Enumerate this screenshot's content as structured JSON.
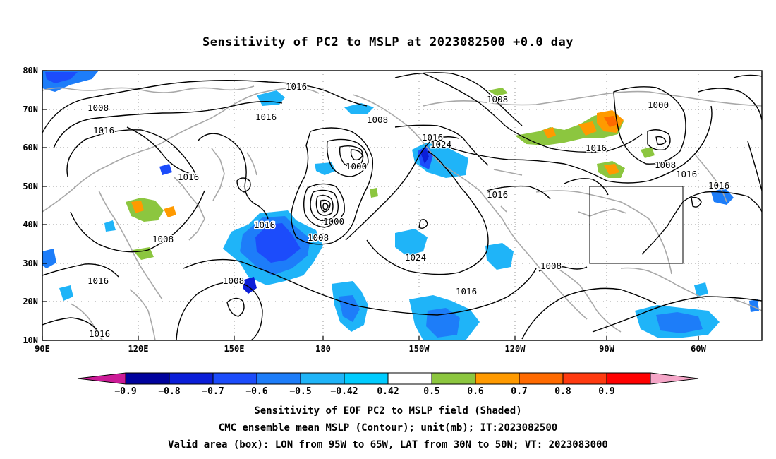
{
  "title": "Sensitivity of PC2 to MSLP at 2023082500 +0.0 day",
  "lat_labels": [
    "80N",
    "70N",
    "60N",
    "50N",
    "40N",
    "30N",
    "20N",
    "10N"
  ],
  "lon_labels": [
    "90E",
    "120E",
    "150E",
    "180",
    "150W",
    "120W",
    "90W",
    "60W"
  ],
  "contour_labels": [
    "1016",
    "1008",
    "1016",
    "1016",
    "1008",
    "1016",
    "1016",
    "1008",
    "1000",
    "1000",
    "1008",
    "1016",
    "1008",
    "1008",
    "1016",
    "1024",
    "1024",
    "1016",
    "1016",
    "1000",
    "1008",
    "1016",
    "1016",
    "1008",
    "1016",
    "1016"
  ],
  "colorbar": {
    "tick_labels": [
      "-0.9",
      "-0.8",
      "-0.7",
      "-0.6",
      "-0.5",
      "-0.42",
      "0.42",
      "0.5",
      "0.6",
      "0.7",
      "0.8",
      "0.9"
    ],
    "colors": [
      "#cc1b97",
      "#00029d",
      "#0b1ed8",
      "#1c4cfb",
      "#1d7df9",
      "#1fb4f8",
      "#00ccff",
      "#ffffff",
      "#8cc63f",
      "#ff9a00",
      "#ff6a00",
      "#ff3a10",
      "#ff0000",
      "#f5a6c8"
    ]
  },
  "valid_box": {
    "lon_min": -95,
    "lon_max": -65,
    "lat_min": 30,
    "lat_max": 50
  },
  "captions": [
    "Sensitivity of EOF PC2 to MSLP field (Shaded)",
    "CMC ensemble mean MSLP (Contour); unit(mb); IT:2023082500",
    "Valid area (box): LON from 95W to 65W, LAT from 30N to 50N; VT: 2023083000"
  ]
}
